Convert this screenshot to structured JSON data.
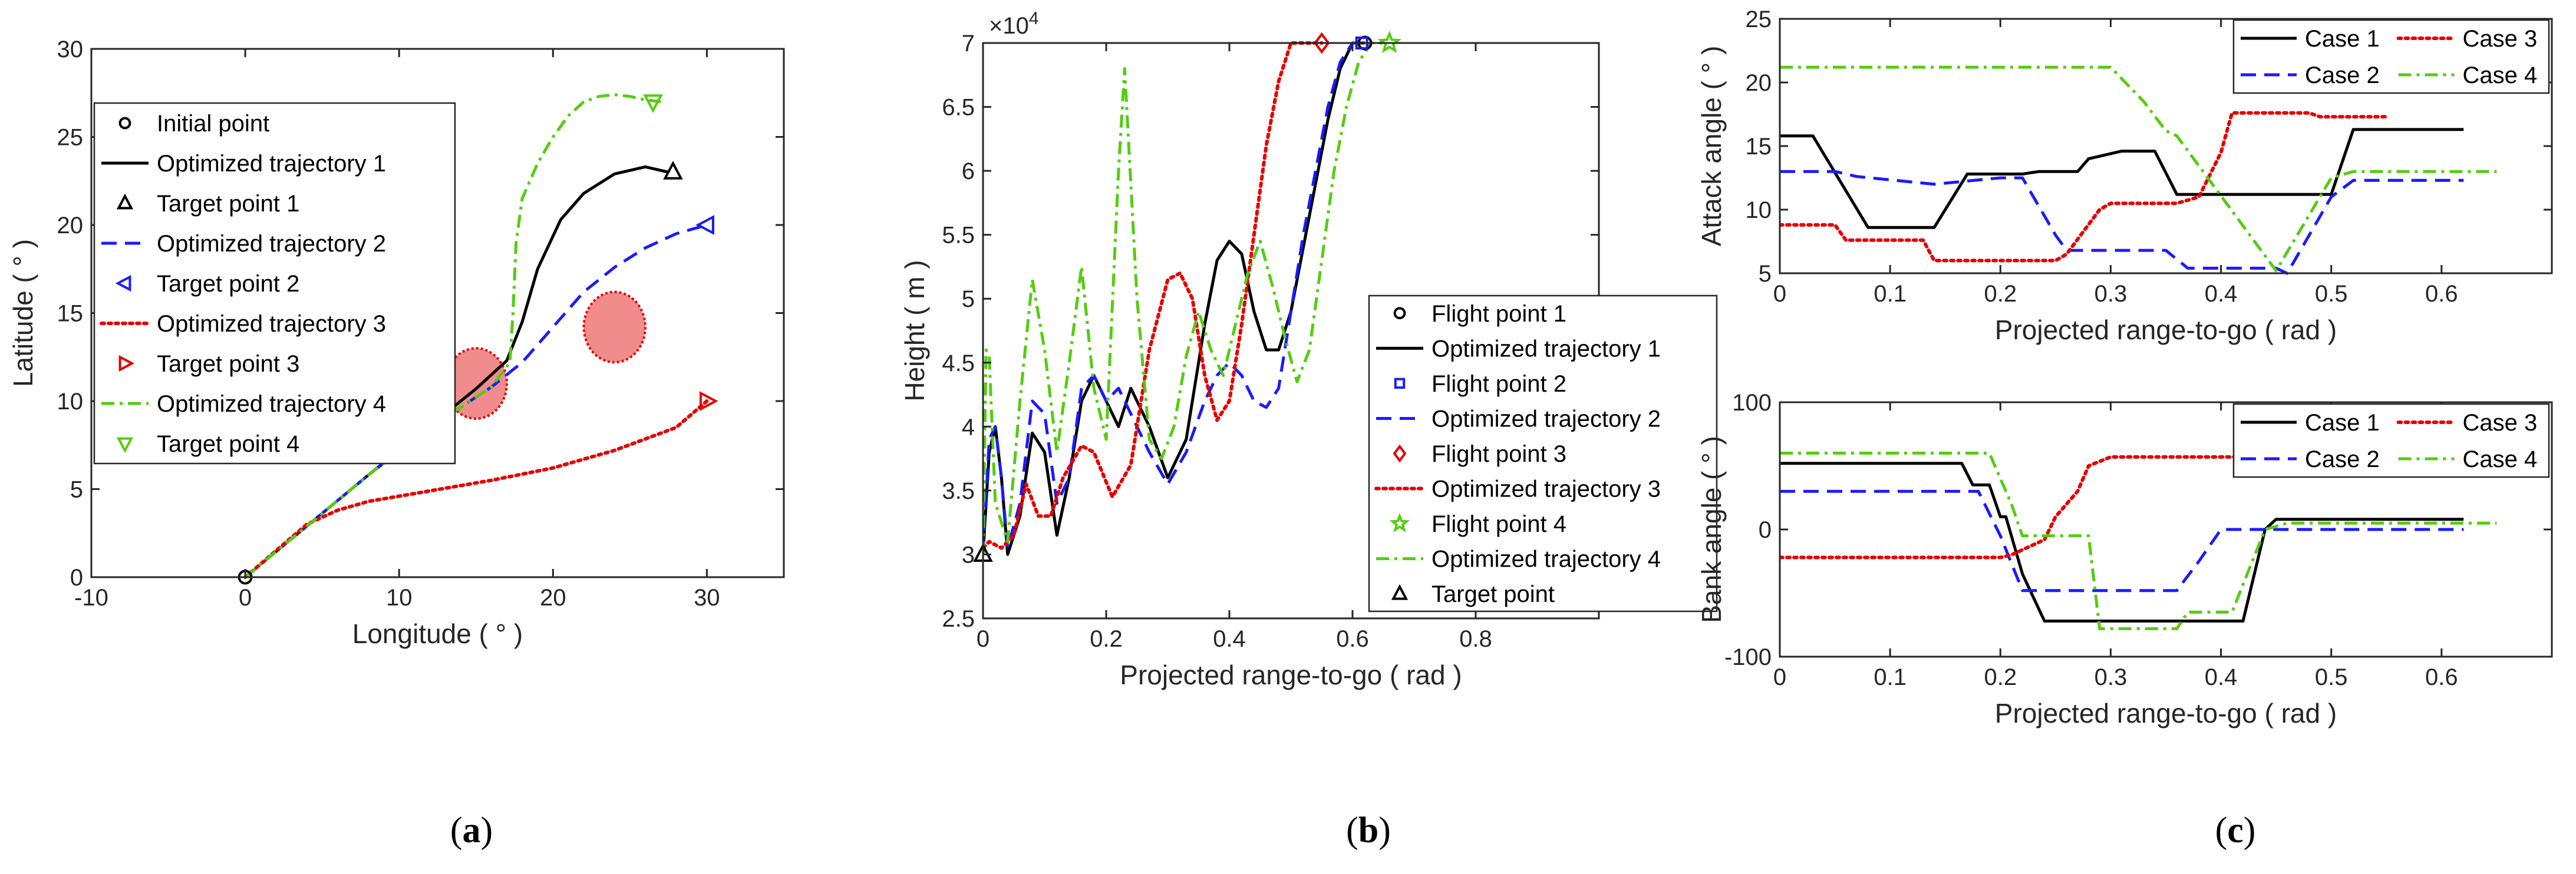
{
  "colors": {
    "black": "#000000",
    "blue": "#1a1aff",
    "red": "#e60000",
    "green": "#55cc11",
    "obstacle_fill": "#f08c8c",
    "obstacle_edge": "#e60000"
  },
  "panel_labels": [
    "(a)",
    "(b)",
    "(c)"
  ],
  "chart_data": [
    {
      "id": "a",
      "type": "line",
      "xlabel": "Longitude ( ° )",
      "ylabel": "Latitude ( ° )",
      "xlim": [
        -10,
        35
      ],
      "ylim": [
        0,
        30
      ],
      "xticks": [
        -10,
        0,
        10,
        20,
        30
      ],
      "yticks": [
        0,
        5,
        10,
        15,
        20,
        25,
        30
      ],
      "obstacles": [
        {
          "x": 15,
          "y": 11,
          "r": 2
        },
        {
          "x": 24,
          "y": 14.2,
          "r": 2
        }
      ],
      "series": [
        {
          "name": "Optimized trajectory 1",
          "color": "black",
          "style": "solid",
          "x": [
            0,
            4,
            8,
            12,
            15,
            17,
            18,
            19,
            20.5,
            22,
            24,
            26,
            27.5
          ],
          "y": [
            0,
            2.9,
            5.8,
            8.6,
            10.7,
            12.3,
            14.5,
            17.5,
            20.3,
            21.8,
            22.9,
            23.3,
            23
          ]
        },
        {
          "name": "Optimized trajectory 2",
          "color": "blue",
          "style": "dashed",
          "x": [
            0,
            4,
            8,
            12,
            16,
            18,
            20,
            22,
            24,
            26,
            28,
            30
          ],
          "y": [
            0,
            2.9,
            5.8,
            8.5,
            10.8,
            12.2,
            14.2,
            16.2,
            17.6,
            18.7,
            19.5,
            20
          ]
        },
        {
          "name": "Optimized trajectory 3",
          "color": "red",
          "style": "dotted",
          "x": [
            0,
            2,
            4,
            6,
            8,
            12,
            16,
            20,
            24,
            28,
            30
          ],
          "y": [
            0,
            1.5,
            3,
            3.8,
            4.3,
            4.9,
            5.5,
            6.2,
            7.2,
            8.5,
            10
          ]
        },
        {
          "name": "Optimized trajectory 4",
          "color": "green",
          "style": "dashdot",
          "x": [
            0,
            4,
            8,
            12,
            16,
            17.2,
            17.4,
            17.6,
            18,
            19,
            20,
            21,
            22,
            23,
            24,
            25,
            26,
            27
          ],
          "y": [
            0,
            2.9,
            5.8,
            8.5,
            10.8,
            12.2,
            15,
            19,
            21.5,
            23.5,
            25,
            26.2,
            27,
            27.3,
            27.4,
            27.3,
            27.1,
            27
          ]
        }
      ],
      "markers": [
        {
          "name": "Initial point",
          "shape": "circle",
          "color": "black",
          "x": 0,
          "y": 0
        },
        {
          "name": "Target point 1",
          "shape": "tri-up",
          "color": "black",
          "x": 27.8,
          "y": 23
        },
        {
          "name": "Target point 2",
          "shape": "tri-left",
          "color": "blue",
          "x": 30,
          "y": 20
        },
        {
          "name": "Target point 3",
          "shape": "tri-right",
          "color": "red",
          "x": 30,
          "y": 10
        },
        {
          "name": "Target point 4",
          "shape": "tri-down",
          "color": "green",
          "x": 26.5,
          "y": 27
        }
      ],
      "legend": [
        {
          "label": "Initial point",
          "color": "black",
          "shape": "circle"
        },
        {
          "label": "Optimized trajectory 1",
          "color": "black",
          "style": "solid"
        },
        {
          "label": "Target point 1",
          "color": "black",
          "shape": "tri-up"
        },
        {
          "label": "Optimized trajectory 2",
          "color": "blue",
          "style": "dashed"
        },
        {
          "label": "Target point 2",
          "color": "blue",
          "shape": "tri-left"
        },
        {
          "label": "Optimized trajectory 3",
          "color": "red",
          "style": "dotted"
        },
        {
          "label": "Target point 3",
          "color": "red",
          "shape": "tri-right"
        },
        {
          "label": "Optimized trajectory 4",
          "color": "green",
          "style": "dashdot"
        },
        {
          "label": "Target point 4",
          "color": "green",
          "shape": "tri-down"
        }
      ]
    },
    {
      "id": "b",
      "type": "line",
      "xlabel": "Projected range-to-go ( rad )",
      "ylabel": "Height ( m )",
      "xlim": [
        0,
        1.0
      ],
      "ylim": [
        2.5,
        7
      ],
      "xticks": [
        0,
        0.2,
        0.4,
        0.6,
        0.8
      ],
      "yticks": [
        2.5,
        3,
        3.5,
        4,
        4.5,
        5,
        5.5,
        6,
        6.5,
        7
      ],
      "multiplier": "×10^4",
      "series": [
        {
          "name": "Optimized trajectory 1",
          "color": "black",
          "style": "solid",
          "x": [
            0,
            0.01,
            0.02,
            0.03,
            0.04,
            0.06,
            0.08,
            0.1,
            0.12,
            0.14,
            0.16,
            0.18,
            0.2,
            0.22,
            0.24,
            0.27,
            0.3,
            0.33,
            0.36,
            0.38,
            0.4,
            0.42,
            0.44,
            0.46,
            0.48,
            0.5,
            0.52,
            0.54,
            0.56,
            0.58,
            0.6,
            0.62
          ],
          "y": [
            3.0,
            3.8,
            4.0,
            3.6,
            3.0,
            3.3,
            3.95,
            3.8,
            3.15,
            3.6,
            4.2,
            4.4,
            4.2,
            4.0,
            4.3,
            4.0,
            3.6,
            3.9,
            4.8,
            5.3,
            5.45,
            5.35,
            4.9,
            4.6,
            4.6,
            4.9,
            5.4,
            5.9,
            6.4,
            6.8,
            7.0,
            7.0
          ]
        },
        {
          "name": "Optimized trajectory 2",
          "color": "blue",
          "style": "dashed",
          "x": [
            0,
            0.01,
            0.02,
            0.03,
            0.04,
            0.06,
            0.08,
            0.1,
            0.12,
            0.14,
            0.16,
            0.18,
            0.2,
            0.22,
            0.24,
            0.27,
            0.3,
            0.33,
            0.36,
            0.38,
            0.4,
            0.42,
            0.44,
            0.46,
            0.48,
            0.5,
            0.52,
            0.54,
            0.56,
            0.58,
            0.6,
            0.62
          ],
          "y": [
            3.0,
            3.9,
            4.0,
            3.6,
            3.05,
            3.4,
            4.2,
            4.1,
            3.4,
            3.6,
            4.3,
            4.4,
            4.2,
            4.3,
            4.1,
            3.8,
            3.55,
            3.8,
            4.2,
            4.4,
            4.5,
            4.4,
            4.2,
            4.15,
            4.3,
            4.9,
            5.5,
            6.0,
            6.5,
            6.85,
            7.0,
            7.0
          ]
        },
        {
          "name": "Optimized trajectory 3",
          "color": "red",
          "style": "dotted",
          "x": [
            0,
            0.01,
            0.03,
            0.05,
            0.07,
            0.09,
            0.11,
            0.13,
            0.16,
            0.18,
            0.21,
            0.24,
            0.27,
            0.3,
            0.32,
            0.34,
            0.36,
            0.38,
            0.4,
            0.42,
            0.44,
            0.46,
            0.48,
            0.5,
            0.52,
            0.54,
            0.55
          ],
          "y": [
            3.05,
            3.1,
            3.05,
            3.15,
            3.55,
            3.3,
            3.3,
            3.6,
            3.85,
            3.8,
            3.45,
            3.7,
            4.6,
            5.15,
            5.2,
            5.0,
            4.4,
            4.05,
            4.2,
            4.8,
            5.5,
            6.2,
            6.7,
            7.0,
            7.0,
            7.0,
            7.0
          ]
        },
        {
          "name": "Optimized trajectory 4",
          "color": "green",
          "style": "dashdot",
          "x": [
            0,
            0.005,
            0.01,
            0.02,
            0.04,
            0.06,
            0.08,
            0.1,
            0.12,
            0.14,
            0.16,
            0.18,
            0.2,
            0.22,
            0.23,
            0.25,
            0.27,
            0.29,
            0.31,
            0.33,
            0.35,
            0.37,
            0.39,
            0.41,
            0.43,
            0.45,
            0.47,
            0.49,
            0.51,
            0.53,
            0.55,
            0.57,
            0.59,
            0.61,
            0.63,
            0.65
          ],
          "y": [
            3.0,
            4.6,
            4.55,
            3.4,
            3.1,
            4.2,
            5.15,
            4.6,
            3.8,
            4.5,
            5.25,
            4.3,
            3.9,
            6.0,
            6.8,
            5.0,
            3.9,
            3.75,
            4.0,
            4.55,
            4.9,
            4.6,
            4.4,
            4.8,
            5.2,
            5.45,
            5.1,
            4.7,
            4.35,
            4.6,
            5.3,
            6.0,
            6.5,
            6.85,
            7.0,
            7.0
          ]
        }
      ],
      "markers": [
        {
          "name": "Flight point 1",
          "shape": "circle",
          "color": "black",
          "x": 0.62,
          "y": 7.0
        },
        {
          "name": "Flight point 2",
          "shape": "square",
          "color": "blue",
          "x": 0.615,
          "y": 7.0
        },
        {
          "name": "Flight point 3",
          "shape": "diamond",
          "color": "red",
          "x": 0.55,
          "y": 7.0
        },
        {
          "name": "Flight point 4",
          "shape": "star",
          "color": "green",
          "x": 0.66,
          "y": 7.0
        },
        {
          "name": "Target point",
          "shape": "tri-up",
          "color": "black",
          "x": 0,
          "y": 3.0
        }
      ],
      "legend": [
        {
          "label": "Flight point 1",
          "color": "black",
          "shape": "circle"
        },
        {
          "label": "Optimized trajectory 1",
          "color": "black",
          "style": "solid"
        },
        {
          "label": "Flight point 2",
          "color": "blue",
          "shape": "square"
        },
        {
          "label": "Optimized trajectory 2",
          "color": "blue",
          "style": "dashed"
        },
        {
          "label": "Flight point 3",
          "color": "red",
          "shape": "diamond"
        },
        {
          "label": "Optimized trajectory 3",
          "color": "red",
          "style": "dotted"
        },
        {
          "label": "Flight point 4",
          "color": "green",
          "shape": "star"
        },
        {
          "label": "Optimized trajectory 4",
          "color": "green",
          "style": "dashdot"
        },
        {
          "label": "Target point",
          "color": "black",
          "shape": "tri-up"
        }
      ]
    },
    {
      "id": "c1",
      "type": "line",
      "xlabel": "Projected range-to-go ( rad )",
      "ylabel": "Attack angle ( ° )",
      "xlim": [
        0,
        0.7
      ],
      "ylim": [
        5,
        25
      ],
      "xticks": [
        0,
        0.1,
        0.2,
        0.3,
        0.4,
        0.5,
        0.6
      ],
      "yticks": [
        5,
        10,
        15,
        20,
        25
      ],
      "series": [
        {
          "name": "Case 1",
          "color": "black",
          "style": "solid",
          "x": [
            0,
            0.03,
            0.08,
            0.14,
            0.17,
            0.22,
            0.235,
            0.27,
            0.28,
            0.31,
            0.34,
            0.36,
            0.42,
            0.44,
            0.5,
            0.52,
            0.62
          ],
          "y": [
            15.8,
            15.8,
            8.6,
            8.6,
            12.8,
            12.8,
            13.0,
            13.0,
            14.0,
            14.6,
            14.6,
            11.2,
            11.2,
            11.2,
            11.2,
            16.3,
            16.3
          ]
        },
        {
          "name": "Case 2",
          "color": "blue",
          "style": "dashed",
          "x": [
            0,
            0.05,
            0.07,
            0.14,
            0.2,
            0.22,
            0.25,
            0.26,
            0.35,
            0.37,
            0.45,
            0.46,
            0.5,
            0.52,
            0.62
          ],
          "y": [
            13.0,
            13.0,
            12.6,
            12.0,
            12.5,
            12.5,
            8.0,
            6.8,
            6.8,
            5.4,
            5.4,
            5.0,
            11.0,
            12.3,
            12.3
          ]
        },
        {
          "name": "Case 3",
          "color": "red",
          "style": "dotted",
          "x": [
            0,
            0.03,
            0.05,
            0.06,
            0.13,
            0.14,
            0.17,
            0.25,
            0.26,
            0.29,
            0.3,
            0.36,
            0.38,
            0.4,
            0.41,
            0.48,
            0.49,
            0.55
          ],
          "y": [
            8.8,
            8.8,
            8.8,
            7.6,
            7.6,
            6.0,
            6.0,
            6.0,
            6.5,
            10.0,
            10.5,
            10.5,
            11.0,
            14.5,
            17.6,
            17.6,
            17.3,
            17.3
          ]
        },
        {
          "name": "Case 4",
          "color": "green",
          "style": "dashdot",
          "x": [
            0,
            0.1,
            0.3,
            0.33,
            0.35,
            0.36,
            0.45,
            0.5,
            0.52,
            0.65
          ],
          "y": [
            21.2,
            21.2,
            21.2,
            18.5,
            16.2,
            15.8,
            5.2,
            12.5,
            13.0,
            13.0
          ]
        }
      ],
      "legend": [
        {
          "label": "Case 1",
          "color": "black",
          "style": "solid"
        },
        {
          "label": "Case 3",
          "color": "red",
          "style": "dotted"
        },
        {
          "label": "Case 2",
          "color": "blue",
          "style": "dashed"
        },
        {
          "label": "Case 4",
          "color": "green",
          "style": "dashdot"
        }
      ]
    },
    {
      "id": "c2",
      "type": "line",
      "xlabel": "Projected range-to-go ( rad )",
      "ylabel": "Bank angle ( ° )",
      "xlim": [
        0,
        0.7
      ],
      "ylim": [
        -100,
        100
      ],
      "xticks": [
        0,
        0.1,
        0.2,
        0.3,
        0.4,
        0.5,
        0.6
      ],
      "yticks": [
        -100,
        0,
        100
      ],
      "series": [
        {
          "name": "Case 1",
          "color": "black",
          "style": "solid",
          "x": [
            0,
            0.165,
            0.175,
            0.19,
            0.2,
            0.205,
            0.22,
            0.24,
            0.42,
            0.44,
            0.45,
            0.62
          ],
          "y": [
            52,
            52,
            35,
            35,
            10,
            10,
            -35,
            -72,
            -72,
            0,
            8,
            8
          ]
        },
        {
          "name": "Case 2",
          "color": "blue",
          "style": "dashed",
          "x": [
            0,
            0.18,
            0.2,
            0.22,
            0.26,
            0.36,
            0.38,
            0.4,
            0.62
          ],
          "y": [
            30,
            30,
            -5,
            -48,
            -48,
            -48,
            -25,
            0,
            0
          ]
        },
        {
          "name": "Case 3",
          "color": "red",
          "style": "dotted",
          "x": [
            0,
            0.2,
            0.21,
            0.24,
            0.25,
            0.27,
            0.28,
            0.3,
            0.55
          ],
          "y": [
            -22,
            -22,
            -20,
            -8,
            10,
            30,
            50,
            57,
            57
          ]
        },
        {
          "name": "Case 4",
          "color": "green",
          "style": "dashdot",
          "x": [
            0,
            0.19,
            0.21,
            0.22,
            0.24,
            0.28,
            0.29,
            0.32,
            0.36,
            0.37,
            0.41,
            0.44,
            0.46,
            0.65
          ],
          "y": [
            60,
            60,
            20,
            -5,
            -5,
            -5,
            -78,
            -78,
            -78,
            -65,
            -65,
            0,
            5,
            5
          ]
        }
      ],
      "legend": [
        {
          "label": "Case 1",
          "color": "black",
          "style": "solid"
        },
        {
          "label": "Case 3",
          "color": "red",
          "style": "dotted"
        },
        {
          "label": "Case 2",
          "color": "blue",
          "style": "dashed"
        },
        {
          "label": "Case 4",
          "color": "green",
          "style": "dashdot"
        }
      ]
    }
  ]
}
